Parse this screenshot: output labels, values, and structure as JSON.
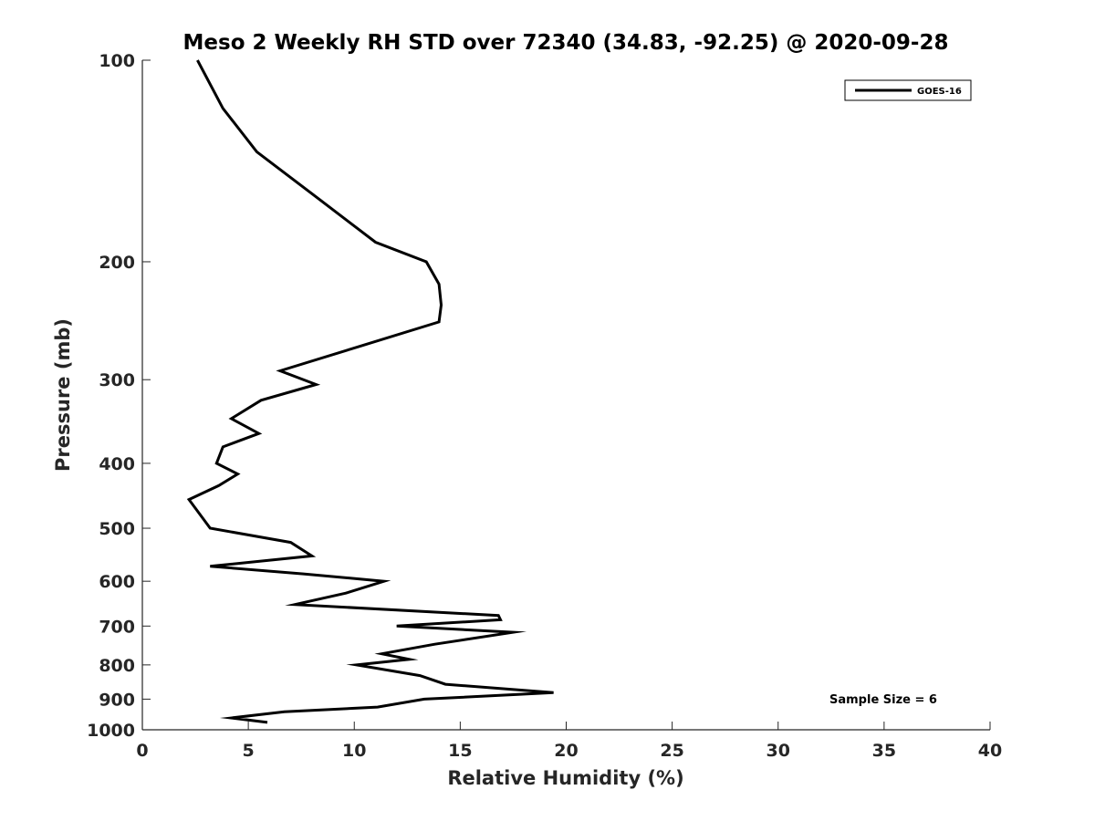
{
  "chart_data": {
    "type": "line",
    "title": "Meso 2 Weekly RH STD over 72340 (34.83, -92.25) @ 2020-09-28",
    "xlabel": "Relative Humidity (%)",
    "ylabel": "Pressure (mb)",
    "xlim": [
      0,
      40
    ],
    "ylim": [
      100,
      1000
    ],
    "y_scale": "log",
    "y_direction": "reversed",
    "x_ticks": [
      0,
      5,
      10,
      15,
      20,
      25,
      30,
      35,
      40
    ],
    "y_ticks": [
      100,
      200,
      300,
      400,
      500,
      600,
      700,
      800,
      900,
      1000
    ],
    "legend_position": "top-right",
    "grid": false,
    "annotation": "Sample Size = 6",
    "series": [
      {
        "name": "GOES-16",
        "color": "#000000",
        "x": [
          2.6,
          3.8,
          5.4,
          8.2,
          11.0,
          13.4,
          14.0,
          14.1,
          14.0,
          6.5,
          8.2,
          5.6,
          4.2,
          5.5,
          3.8,
          3.5,
          4.5,
          3.6,
          2.2,
          3.2,
          7.0,
          8.0,
          3.2,
          7.6,
          11.4,
          9.6,
          7.2,
          16.8,
          16.9,
          12.0,
          17.5,
          13.8,
          11.3,
          12.6,
          10.1,
          13.1,
          14.3,
          19.4,
          13.3,
          11.1,
          6.7,
          4.2,
          5.9
        ],
        "y": [
          100,
          118,
          137,
          160,
          187,
          200,
          216,
          232,
          246,
          291,
          305,
          322,
          343,
          361,
          378,
          400,
          415,
          432,
          453,
          500,
          525,
          550,
          570,
          585,
          600,
          625,
          650,
          675,
          685,
          700,
          715,
          745,
          770,
          785,
          800,
          830,
          855,
          880,
          900,
          925,
          940,
          960,
          975
        ]
      }
    ]
  }
}
